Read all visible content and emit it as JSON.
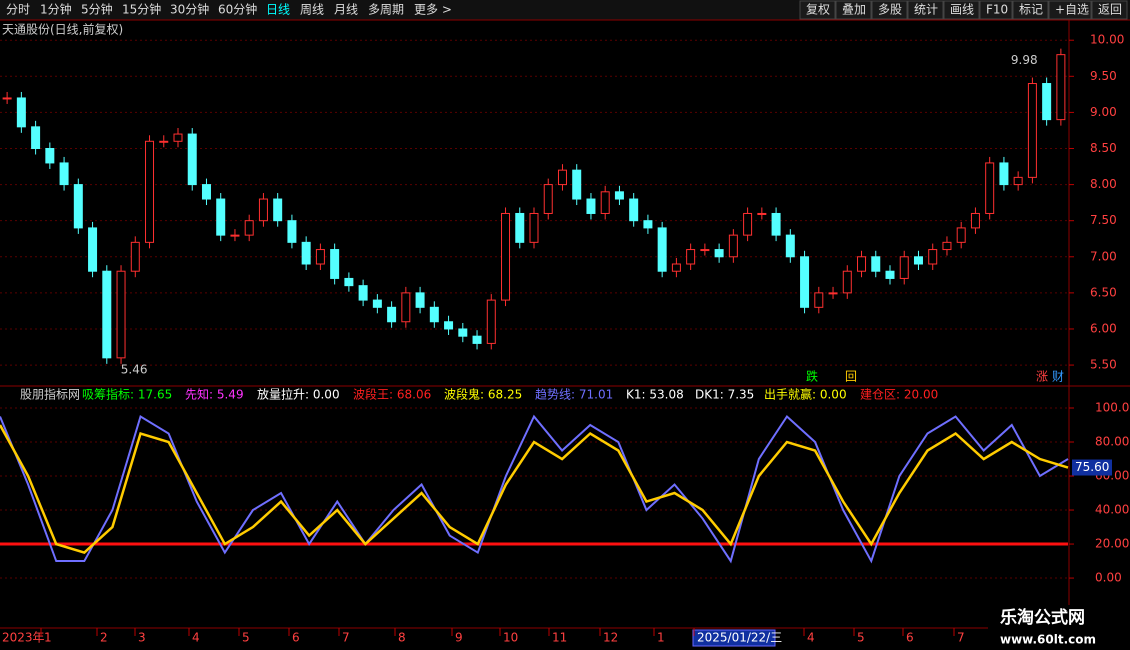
{
  "toolbar_left": [
    "分时",
    "1分钟",
    "5分钟",
    "15分钟",
    "30分钟",
    "60分钟",
    "日线",
    "周线",
    "月线",
    "多周期",
    "更多 >"
  ],
  "toolbar_right": [
    "复权",
    "叠加",
    "多股",
    "统计",
    "画线",
    "F10",
    "标记",
    "+自选",
    "返回"
  ],
  "main": {
    "title": "天通股份(日线,前复权)",
    "ylim": [
      5.21,
      10.28
    ],
    "yticks": [
      {
        "value": 10,
        "label": "10.00"
      },
      {
        "value": 9.5,
        "label": "9.50"
      },
      {
        "value": 9,
        "label": "9.00"
      },
      {
        "value": 8.5,
        "label": "8.50"
      },
      {
        "value": 8,
        "label": "8.00"
      },
      {
        "value": 7.5,
        "label": "7.50"
      },
      {
        "value": 7,
        "label": "7.00"
      },
      {
        "value": 6.5,
        "label": "6.50"
      },
      {
        "value": 6,
        "label": "6.00"
      },
      {
        "value": 5.5,
        "label": "5.50"
      }
    ],
    "closes": [
      9.2,
      8.8,
      8.5,
      8.3,
      8.0,
      7.4,
      6.8,
      5.6,
      6.8,
      7.2,
      8.6,
      8.6,
      8.7,
      8.0,
      7.8,
      7.3,
      7.3,
      7.5,
      7.8,
      7.5,
      7.2,
      6.9,
      7.1,
      6.7,
      6.6,
      6.4,
      6.3,
      6.1,
      6.5,
      6.3,
      6.1,
      6.0,
      5.9,
      5.8,
      6.4,
      7.6,
      7.2,
      7.6,
      8.0,
      8.2,
      7.8,
      7.6,
      7.9,
      7.8,
      7.5,
      7.4,
      6.8,
      6.9,
      7.1,
      7.1,
      7.0,
      7.3,
      7.6,
      7.6,
      7.3,
      7.0,
      6.3,
      6.5,
      6.5,
      6.8,
      7.0,
      6.8,
      6.7,
      7.0,
      6.9,
      7.1,
      7.2,
      7.4,
      7.6,
      8.3,
      8.0,
      8.1,
      9.4,
      8.9,
      9.8
    ],
    "high_label": "9.98",
    "low_label": "5.46",
    "markers": [
      "跌",
      "回",
      "涨",
      "财"
    ]
  },
  "indicator": {
    "name": "股朋指标网",
    "items": [
      {
        "text": "吸筹指标: 17.65",
        "color": "#00ff00"
      },
      {
        "text": "先知: 5.49",
        "color": "#ff33ff"
      },
      {
        "text": "放量拉升: 0.00",
        "color": "#ffffff"
      },
      {
        "text": "波段王: 68.06",
        "color": "#ff2020"
      },
      {
        "text": "波段鬼: 68.25",
        "color": "#ffff00"
      },
      {
        "text": "趋势线: 71.01",
        "color": "#6f6fff"
      },
      {
        "text": "K1: 53.08",
        "color": "#ffffff"
      },
      {
        "text": "DK1: 7.35",
        "color": "#ffffff"
      },
      {
        "text": "出手就赢: 0.00",
        "color": "#ffff00"
      },
      {
        "text": "建仓区: 20.00",
        "color": "#ff2020"
      }
    ],
    "ylim": [
      -12.9,
      104.7
    ],
    "yticks": [
      {
        "value": 0,
        "label": "0.00"
      },
      {
        "value": 20,
        "label": "20.00"
      },
      {
        "value": 40,
        "label": "40.00"
      },
      {
        "value": 60,
        "label": "60.00"
      },
      {
        "value": 80,
        "label": "80.00"
      },
      {
        "value": 100,
        "label": "100.0"
      }
    ],
    "current_label": "75.60",
    "band": [
      90,
      60,
      20,
      15,
      30,
      85,
      80,
      50,
      20,
      30,
      45,
      25,
      40,
      20,
      35,
      50,
      30,
      20,
      55,
      80,
      70,
      85,
      75,
      45,
      50,
      40,
      20,
      60,
      80,
      75,
      45,
      20,
      50,
      75,
      85,
      70,
      80,
      70,
      65
    ],
    "trend": [
      95,
      55,
      10,
      10,
      40,
      95,
      85,
      45,
      15,
      40,
      50,
      20,
      45,
      20,
      40,
      55,
      25,
      15,
      60,
      95,
      75,
      90,
      80,
      40,
      55,
      35,
      10,
      70,
      95,
      80,
      40,
      10,
      60,
      85,
      95,
      75,
      90,
      60,
      70
    ]
  },
  "x_labels": [
    "2023年",
    "1",
    "2",
    "3",
    "4",
    "5",
    "6",
    "7",
    "8",
    "9",
    "10",
    "11",
    "12",
    "1",
    "2025/01/22/三",
    "4",
    "5",
    "6",
    "7"
  ],
  "watermark": {
    "name": "乐淘公式网",
    "url": "www.60lt.com"
  }
}
